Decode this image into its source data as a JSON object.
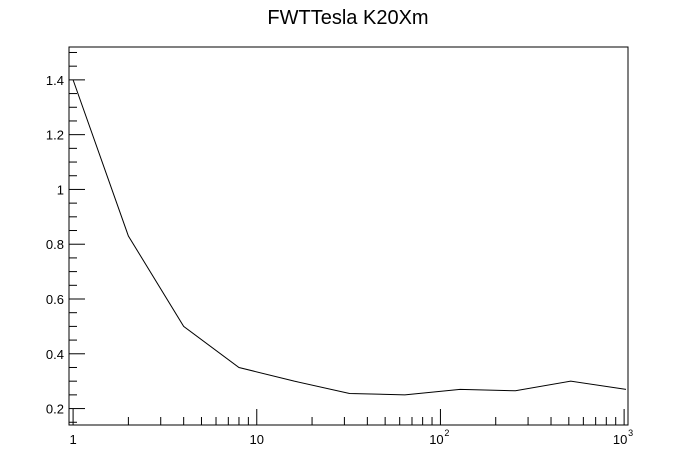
{
  "chart_data": {
    "type": "line",
    "title": "FWTTesla K20Xm",
    "xlabel": "",
    "ylabel": "",
    "x_scale": "log",
    "xlim": [
      0.95,
      1050
    ],
    "ylim": [
      0.14,
      1.52
    ],
    "grid": false,
    "x_tick_labels": [
      {
        "value": 1,
        "base": "1",
        "exp": ""
      },
      {
        "value": 10,
        "base": "10",
        "exp": ""
      },
      {
        "value": 100,
        "base": "10",
        "exp": "2"
      },
      {
        "value": 1000,
        "base": "10",
        "exp": "3"
      }
    ],
    "y_tick_labels": [
      {
        "value": 0.2,
        "label": "0.2"
      },
      {
        "value": 0.4,
        "label": "0.4"
      },
      {
        "value": 0.6,
        "label": "0.6"
      },
      {
        "value": 0.8,
        "label": "0.8"
      },
      {
        "value": 1.0,
        "label": "1"
      },
      {
        "value": 1.2,
        "label": "1.2"
      },
      {
        "value": 1.4,
        "label": "1.4"
      }
    ],
    "series": [
      {
        "x": [
          1,
          2,
          4,
          8,
          16,
          32,
          64,
          128,
          256,
          512,
          1024
        ],
        "y": [
          1.4,
          0.83,
          0.5,
          0.35,
          0.3,
          0.255,
          0.25,
          0.27,
          0.265,
          0.3,
          0.27
        ]
      }
    ]
  }
}
